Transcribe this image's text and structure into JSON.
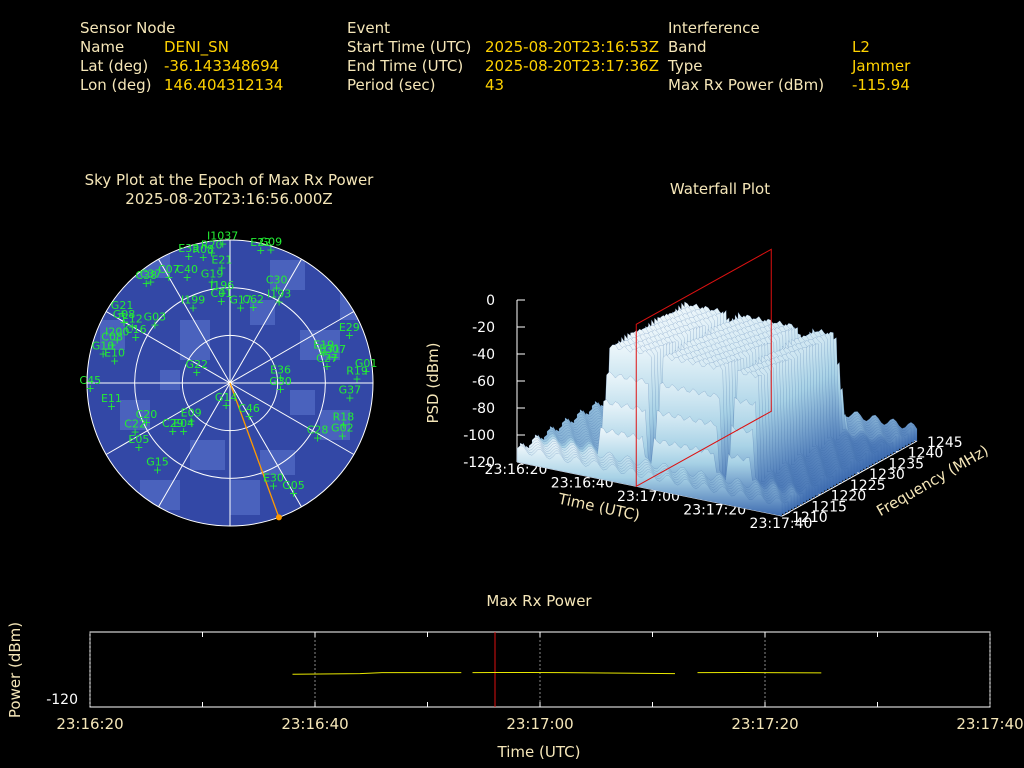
{
  "header": {
    "sensor": {
      "heading": "Sensor Node",
      "name_label": "Name",
      "name_value": "DENI_SN",
      "lat_label": "Lat (deg)",
      "lat_value": "-36.143348694",
      "lon_label": "Lon (deg)",
      "lon_value": "146.404312134"
    },
    "event": {
      "heading": "Event",
      "start_label": "Start Time (UTC)",
      "start_value": "2025-08-20T23:16:53Z",
      "end_label": "End Time (UTC)",
      "end_value": "2025-08-20T23:17:36Z",
      "period_label": "Period (sec)",
      "period_value": "43"
    },
    "interference": {
      "heading": "Interference",
      "band_label": "Band",
      "band_value": "L2",
      "type_label": "Type",
      "type_value": "Jammer",
      "power_label": "Max Rx Power (dBm)",
      "power_value": "-115.94"
    }
  },
  "colors": {
    "label": "#f5e6b8",
    "value": "#ffd200",
    "sat": "#22ee33",
    "sky_bg": "#3348a6",
    "sky_patch": "#4a62bd",
    "red": "#dd1111",
    "bearing": "#ff9a00",
    "trace": "#e8e800"
  },
  "chart_data": [
    {
      "type": "scatter",
      "title": "Sky Plot at the Epoch of Max Rx Power",
      "subtitle": "2025-08-20T23:16:56.000Z",
      "projection": "polar",
      "rings_elevation_deg": [
        0,
        30,
        60
      ],
      "jammer_bearing_az_deg": 160,
      "satellites": [
        {
          "id": "I1037",
          "az": 357,
          "el": 2
        },
        {
          "id": "G09",
          "az": 17,
          "el": 2
        },
        {
          "id": "E22",
          "az": 13,
          "el": 4
        },
        {
          "id": "R20",
          "az": 352,
          "el": 7
        },
        {
          "id": "E33",
          "az": 342,
          "el": 6
        },
        {
          "id": "R08",
          "az": 348,
          "el": 9
        },
        {
          "id": "E21",
          "az": 356,
          "el": 17
        },
        {
          "id": "C40",
          "az": 338,
          "el": 18
        },
        {
          "id": "G19",
          "az": 350,
          "el": 25
        },
        {
          "id": "C37",
          "az": 322,
          "el": 9
        },
        {
          "id": "C38",
          "az": 320,
          "el": 8
        },
        {
          "id": "C07",
          "az": 330,
          "el": 13
        },
        {
          "id": "I196",
          "az": 355,
          "el": 33
        },
        {
          "id": "C01",
          "az": 354,
          "el": 38
        },
        {
          "id": "C30",
          "az": 26,
          "el": 23
        },
        {
          "id": "I193",
          "az": 31,
          "el": 30
        },
        {
          "id": "C62",
          "az": 17,
          "el": 40
        },
        {
          "id": "G17",
          "az": 8,
          "el": 42
        },
        {
          "id": "I199",
          "az": 334,
          "el": 37
        },
        {
          "id": "G21",
          "az": 303,
          "el": 9
        },
        {
          "id": "G08",
          "az": 300,
          "el": 13
        },
        {
          "id": "E12",
          "az": 300,
          "el": 19
        },
        {
          "id": "C16",
          "az": 296,
          "el": 24
        },
        {
          "id": "G03",
          "az": 308,
          "el": 30
        },
        {
          "id": "I200",
          "az": 291,
          "el": 14
        },
        {
          "id": "C08",
          "az": 288,
          "el": 12
        },
        {
          "id": "G10",
          "az": 283,
          "el": 8
        },
        {
          "id": "E10",
          "az": 281,
          "el": 16
        },
        {
          "id": "E29",
          "az": 68,
          "el": 9
        },
        {
          "id": "E19",
          "az": 72,
          "el": 28
        },
        {
          "id": "E31",
          "az": 75,
          "el": 25
        },
        {
          "id": "G07",
          "az": 76,
          "el": 22
        },
        {
          "id": "C27",
          "az": 80,
          "el": 28
        },
        {
          "id": "G01",
          "az": 85,
          "el": 4
        },
        {
          "id": "R19",
          "az": 88,
          "el": 10
        },
        {
          "id": "E36",
          "az": 84,
          "el": 58
        },
        {
          "id": "G30",
          "az": 97,
          "el": 58
        },
        {
          "id": "G37",
          "az": 97,
          "el": 14
        },
        {
          "id": "R18",
          "az": 110,
          "el": 14
        },
        {
          "id": "G02",
          "az": 115,
          "el": 12
        },
        {
          "id": "C28",
          "az": 122,
          "el": 25
        },
        {
          "id": "G05",
          "az": 150,
          "el": 10
        },
        {
          "id": "E30",
          "az": 157,
          "el": 20
        },
        {
          "id": "C46",
          "az": 150,
          "el": 66
        },
        {
          "id": "G22",
          "az": 288,
          "el": 68
        },
        {
          "id": "G14",
          "az": 190,
          "el": 76
        },
        {
          "id": "C45",
          "az": 268,
          "el": 2
        },
        {
          "id": "E11",
          "az": 259,
          "el": 14
        },
        {
          "id": "C20",
          "az": 245,
          "el": 32
        },
        {
          "id": "C29",
          "az": 230,
          "el": 43
        },
        {
          "id": "E04",
          "az": 224,
          "el": 48
        },
        {
          "id": "E09",
          "az": 226,
          "el": 56
        },
        {
          "id": "C22",
          "az": 243,
          "el": 23
        },
        {
          "id": "E05",
          "az": 235,
          "el": 20
        },
        {
          "id": "G15",
          "az": 220,
          "el": 19
        }
      ]
    },
    {
      "type": "area",
      "title": "Waterfall Plot",
      "view": "3d",
      "xlabel": "Time (UTC)",
      "ylabel": "Frequency (MHz)",
      "zlabel": "PSD (dBm)",
      "x_ticks": [
        "23:16:20",
        "23:16:40",
        "23:17:00",
        "23:17:20",
        "23:17:40"
      ],
      "y_ticks": [
        "1210",
        "1215",
        "1220",
        "1225",
        "1230",
        "1235",
        "1240",
        "1245"
      ],
      "z_ticks": [
        "0",
        "-20",
        "-40",
        "-60",
        "-80",
        "-100",
        "-120"
      ],
      "xlim": [
        "23:16:20",
        "23:17:40"
      ],
      "ylim": [
        1210,
        1245
      ],
      "zlim": [
        -120,
        0
      ],
      "max_power_epoch": "23:16:56",
      "plateau_dbm": -35,
      "noise_floor_dbm": -110,
      "jammer_band_mhz": [
        1214,
        1240
      ]
    },
    {
      "type": "line",
      "title": "Max Rx Power",
      "xlabel": "Time (UTC)",
      "ylabel": "Power (dBm)",
      "x_ticks": [
        "23:16:20",
        "23:16:40",
        "23:17:00",
        "23:17:20",
        "23:17:40"
      ],
      "y_ticks": [
        "-120"
      ],
      "xlim": [
        "23:16:20",
        "23:17:40"
      ],
      "ylim": [
        -121,
        -110
      ],
      "marker_time": "23:16:56",
      "series": [
        {
          "segments": [
            [
              [
                "23:16:38",
                -116.2
              ],
              [
                "23:16:44",
                -116.1
              ],
              [
                "23:16:46",
                -115.95
              ],
              [
                "23:16:53",
                -115.95
              ]
            ],
            [
              [
                "23:16:54",
                -115.95
              ],
              [
                "23:16:56",
                -115.94
              ],
              [
                "23:16:59",
                -115.94
              ],
              [
                "23:17:02",
                -115.95
              ],
              [
                "23:17:12",
                -116.1
              ]
            ],
            [
              [
                "23:17:14",
                -115.95
              ],
              [
                "23:17:18",
                -115.94
              ],
              [
                "23:17:25",
                -116.0
              ]
            ]
          ]
        }
      ]
    }
  ]
}
